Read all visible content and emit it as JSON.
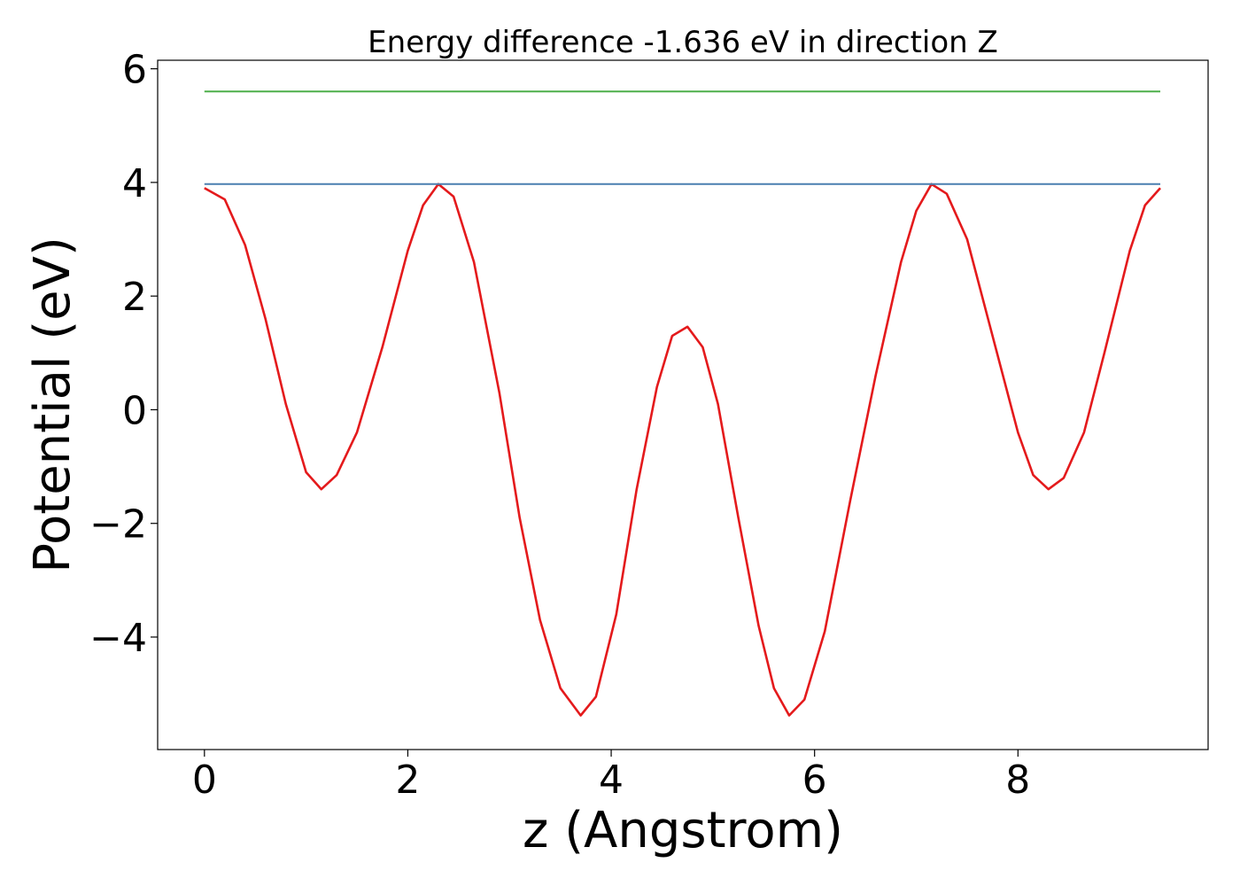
{
  "chart_data": {
    "type": "line",
    "title": "Energy difference -1.636 eV in direction Z",
    "xlabel": "z (Angstrom)",
    "ylabel": "Potential (eV)",
    "xlim": [
      -0.46,
      9.87
    ],
    "ylim": [
      -5.98,
      6.15
    ],
    "x_ticks": [
      0,
      2,
      4,
      6,
      8
    ],
    "x_tick_labels": [
      "0",
      "2",
      "4",
      "6",
      "8"
    ],
    "y_ticks": [
      -4,
      -2,
      0,
      2,
      4,
      6
    ],
    "y_tick_labels": [
      "−4",
      "−2",
      "0",
      "2",
      "4",
      "6"
    ],
    "grid": false,
    "series": [
      {
        "color": "#e41a1c",
        "points": [
          [
            0.0,
            3.9
          ],
          [
            0.2,
            3.7
          ],
          [
            0.4,
            2.9
          ],
          [
            0.6,
            1.6
          ],
          [
            0.8,
            0.1
          ],
          [
            1.0,
            -1.1
          ],
          [
            1.15,
            -1.4
          ],
          [
            1.3,
            -1.15
          ],
          [
            1.5,
            -0.4
          ],
          [
            1.75,
            1.1
          ],
          [
            2.0,
            2.8
          ],
          [
            2.15,
            3.6
          ],
          [
            2.3,
            3.97
          ],
          [
            2.45,
            3.75
          ],
          [
            2.65,
            2.6
          ],
          [
            2.9,
            0.3
          ],
          [
            3.1,
            -1.9
          ],
          [
            3.3,
            -3.7
          ],
          [
            3.5,
            -4.9
          ],
          [
            3.7,
            -5.38
          ],
          [
            3.85,
            -5.05
          ],
          [
            4.05,
            -3.6
          ],
          [
            4.25,
            -1.4
          ],
          [
            4.45,
            0.4
          ],
          [
            4.6,
            1.3
          ],
          [
            4.75,
            1.46
          ],
          [
            4.9,
            1.1
          ],
          [
            5.05,
            0.1
          ],
          [
            5.25,
            -1.9
          ],
          [
            5.45,
            -3.8
          ],
          [
            5.6,
            -4.9
          ],
          [
            5.75,
            -5.38
          ],
          [
            5.9,
            -5.1
          ],
          [
            6.1,
            -3.9
          ],
          [
            6.35,
            -1.6
          ],
          [
            6.6,
            0.6
          ],
          [
            6.85,
            2.6
          ],
          [
            7.0,
            3.5
          ],
          [
            7.15,
            3.97
          ],
          [
            7.3,
            3.8
          ],
          [
            7.5,
            3.0
          ],
          [
            7.75,
            1.3
          ],
          [
            8.0,
            -0.4
          ],
          [
            8.15,
            -1.15
          ],
          [
            8.3,
            -1.4
          ],
          [
            8.45,
            -1.2
          ],
          [
            8.65,
            -0.4
          ],
          [
            8.85,
            1.0
          ],
          [
            9.1,
            2.8
          ],
          [
            9.25,
            3.6
          ],
          [
            9.4,
            3.9
          ]
        ]
      },
      {
        "color": "#4a7fb0",
        "points": [
          [
            0.0,
            3.97
          ],
          [
            9.4,
            3.97
          ]
        ]
      },
      {
        "color": "#4daf4a",
        "points": [
          [
            0.0,
            5.6
          ],
          [
            9.4,
            5.6
          ]
        ]
      }
    ]
  }
}
